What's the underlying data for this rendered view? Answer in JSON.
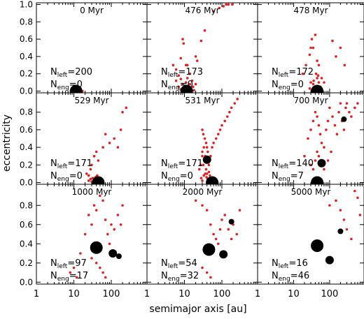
{
  "figure": {
    "ylabel": "eccentricity",
    "xlabel": "semimajor axis [au]",
    "x_tick_labels": [
      "1",
      "10",
      "100"
    ],
    "y_tick_labels_top_row": [
      "0.0",
      "0.2",
      "0.4",
      "0.6",
      "0.8",
      "1.0"
    ],
    "y_tick_labels_other_rows": [
      "0.0",
      "0.2",
      "0.4",
      "0.6",
      "0.8"
    ],
    "colors": {
      "particles": "#dd2222",
      "planets": "#000000",
      "frame": "#000000"
    }
  },
  "chart_data": [
    {
      "type": "scatter",
      "time_label": "0 Myr",
      "nleft": "200",
      "neng": "0",
      "xscale": "log",
      "xlim": [
        1,
        900
      ],
      "ylim": [
        -0.02,
        1.02
      ],
      "red_points": [
        [
          11,
          0
        ],
        [
          12,
          0
        ],
        [
          13,
          0
        ],
        [
          14,
          0
        ],
        [
          15,
          0
        ],
        [
          16,
          0
        ],
        [
          17,
          0
        ]
      ],
      "planets": [
        {
          "a": 11.5,
          "e": 0.0,
          "size": 3
        }
      ]
    },
    {
      "type": "scatter",
      "time_label": "476 Myr",
      "nleft": "173",
      "neng": "0",
      "xscale": "log",
      "xlim": [
        1,
        900
      ],
      "ylim": [
        -0.02,
        1.02
      ],
      "red_points": [
        [
          5,
          0.3
        ],
        [
          6,
          0.25
        ],
        [
          8,
          0.38
        ],
        [
          9,
          0.6
        ],
        [
          9.5,
          0.55
        ],
        [
          11,
          0.3
        ],
        [
          12,
          0.3
        ],
        [
          14,
          0.2
        ],
        [
          20,
          0.4
        ],
        [
          22,
          0.35
        ],
        [
          28,
          0.58
        ],
        [
          35,
          0.7
        ],
        [
          60,
          0.92
        ],
        [
          85,
          0.96
        ],
        [
          110,
          0.98
        ],
        [
          130,
          1.0
        ],
        [
          150,
          1.0
        ],
        [
          190,
          1.0
        ],
        [
          7,
          0.05
        ],
        [
          8,
          0.02
        ],
        [
          9,
          0.08
        ],
        [
          10,
          0.03
        ],
        [
          11,
          0.1
        ],
        [
          12,
          0.15
        ],
        [
          13,
          0.05
        ],
        [
          14,
          0.08
        ],
        [
          15,
          0.02
        ],
        [
          16,
          0.12
        ],
        [
          17,
          0.05
        ],
        [
          18,
          0.01
        ],
        [
          20,
          0.08
        ],
        [
          6,
          0.12
        ],
        [
          7,
          0.18
        ],
        [
          8,
          0.14
        ]
      ],
      "planets": [
        {
          "a": 11.5,
          "e": 0.0,
          "size": 3
        }
      ]
    },
    {
      "type": "scatter",
      "time_label": "478 Myr",
      "nleft": "172",
      "neng": "0",
      "xscale": "log",
      "xlim": [
        1,
        900
      ],
      "ylim": [
        -0.02,
        1.02
      ],
      "red_points": [
        [
          18,
          0.2
        ],
        [
          22,
          0.3
        ],
        [
          28,
          0.42
        ],
        [
          30,
          0.5
        ],
        [
          32,
          0.6
        ],
        [
          35,
          0.5
        ],
        [
          40,
          0.65
        ],
        [
          45,
          0.35
        ],
        [
          50,
          0.3
        ],
        [
          60,
          0.15
        ],
        [
          70,
          0.1
        ],
        [
          120,
          0.58
        ],
        [
          150,
          0.4
        ],
        [
          200,
          0.5
        ],
        [
          260,
          0.3
        ],
        [
          30,
          0.1
        ],
        [
          35,
          0.08
        ],
        [
          40,
          0.05
        ],
        [
          45,
          0.15
        ],
        [
          50,
          0.1
        ],
        [
          55,
          0.05
        ],
        [
          60,
          0.02
        ],
        [
          28,
          0.03
        ],
        [
          32,
          0.01
        ],
        [
          36,
          0.12
        ],
        [
          42,
          0.2
        ],
        [
          48,
          0.18
        ]
      ],
      "planets": [
        {
          "a": 45,
          "e": 0.0,
          "size": 3
        }
      ]
    },
    {
      "type": "scatter",
      "time_label": "529 Myr",
      "nleft": "171",
      "neng": "0",
      "xscale": "log",
      "xlim": [
        1,
        900
      ],
      "ylim": [
        -0.02,
        1.02
      ],
      "red_points": [
        [
          22,
          0.1
        ],
        [
          25,
          0.08
        ],
        [
          28,
          0.15
        ],
        [
          30,
          0.2
        ],
        [
          35,
          0.3
        ],
        [
          40,
          0.35
        ],
        [
          45,
          0.25
        ],
        [
          60,
          0.4
        ],
        [
          70,
          0.55
        ],
        [
          90,
          0.45
        ],
        [
          120,
          0.5
        ],
        [
          150,
          0.4
        ],
        [
          180,
          0.6
        ],
        [
          200,
          0.8
        ],
        [
          250,
          0.85
        ],
        [
          25,
          0.02
        ],
        [
          28,
          0.04
        ],
        [
          30,
          0.01
        ],
        [
          32,
          0.05
        ],
        [
          35,
          0.02
        ],
        [
          38,
          0.06
        ],
        [
          40,
          0.03
        ],
        [
          42,
          0.08
        ],
        [
          48,
          0.04
        ],
        [
          55,
          0.02
        ]
      ],
      "planets": [
        {
          "a": 45,
          "e": 0.0,
          "size": 3
        }
      ]
    },
    {
      "type": "scatter",
      "time_label": "531 Myr",
      "nleft": "171",
      "neng": "0",
      "xscale": "log",
      "xlim": [
        1,
        900
      ],
      "ylim": [
        -0.02,
        1.02
      ],
      "red_points": [
        [
          30,
          0.6
        ],
        [
          32,
          0.55
        ],
        [
          35,
          0.5
        ],
        [
          38,
          0.45
        ],
        [
          40,
          0.4
        ],
        [
          42,
          0.35
        ],
        [
          30,
          0.3
        ],
        [
          32,
          0.2
        ],
        [
          35,
          0.25
        ],
        [
          38,
          0.15
        ],
        [
          40,
          0.1
        ],
        [
          45,
          0.2
        ],
        [
          50,
          0.3
        ],
        [
          55,
          0.4
        ],
        [
          60,
          0.45
        ],
        [
          70,
          0.5
        ],
        [
          80,
          0.55
        ],
        [
          90,
          0.6
        ],
        [
          100,
          0.65
        ],
        [
          120,
          0.7
        ],
        [
          140,
          0.75
        ],
        [
          160,
          0.8
        ],
        [
          180,
          0.85
        ],
        [
          220,
          0.9
        ],
        [
          260,
          0.95
        ],
        [
          28,
          0.05
        ],
        [
          30,
          0.02
        ],
        [
          33,
          0.08
        ],
        [
          36,
          0.1
        ],
        [
          39,
          0.06
        ],
        [
          42,
          0.04
        ],
        [
          45,
          0.12
        ],
        [
          48,
          0.08
        ],
        [
          52,
          0.05
        ],
        [
          25,
          0.15
        ],
        [
          27,
          0.2
        ],
        [
          30,
          0.35
        ],
        [
          33,
          0.4
        ],
        [
          36,
          0.3
        ]
      ],
      "planets": [
        {
          "a": 55,
          "e": 0.0,
          "size": 3
        },
        {
          "a": 40,
          "e": 0.26,
          "size": 2
        }
      ]
    },
    {
      "type": "scatter",
      "time_label": "700 Myr",
      "nleft": "140",
      "neng": "7",
      "xscale": "log",
      "xlim": [
        1,
        900
      ],
      "ylim": [
        -0.02,
        1.02
      ],
      "red_points": [
        [
          20,
          0.3
        ],
        [
          25,
          0.5
        ],
        [
          30,
          0.6
        ],
        [
          35,
          0.7
        ],
        [
          40,
          0.8
        ],
        [
          45,
          0.75
        ],
        [
          50,
          0.65
        ],
        [
          55,
          0.55
        ],
        [
          60,
          0.45
        ],
        [
          70,
          0.4
        ],
        [
          80,
          0.6
        ],
        [
          90,
          0.7
        ],
        [
          100,
          0.85
        ],
        [
          120,
          0.75
        ],
        [
          140,
          0.65
        ],
        [
          160,
          0.55
        ],
        [
          180,
          0.8
        ],
        [
          200,
          0.9
        ],
        [
          220,
          0.7
        ],
        [
          250,
          0.6
        ],
        [
          280,
          0.85
        ],
        [
          300,
          0.9
        ],
        [
          350,
          0.8
        ],
        [
          400,
          0.75
        ],
        [
          500,
          0.85
        ],
        [
          600,
          0.9
        ],
        [
          30,
          0.2
        ],
        [
          35,
          0.15
        ],
        [
          40,
          0.25
        ],
        [
          45,
          0.35
        ],
        [
          50,
          0.3
        ],
        [
          60,
          0.2
        ],
        [
          70,
          0.15
        ],
        [
          90,
          0.25
        ],
        [
          110,
          0.35
        ]
      ],
      "planets": [
        {
          "a": 45,
          "e": 0.0,
          "size": 3
        },
        {
          "a": 60,
          "e": 0.22,
          "size": 2
        },
        {
          "a": 250,
          "e": 0.72,
          "size": 1
        }
      ]
    },
    {
      "type": "scatter",
      "time_label": "1000 Myr",
      "nleft": "97",
      "neng": "17",
      "xscale": "log",
      "xlim": [
        1,
        900
      ],
      "ylim": [
        -0.02,
        1.02
      ],
      "red_points": [
        [
          8,
          0.1
        ],
        [
          10,
          0.15
        ],
        [
          12,
          0.05
        ],
        [
          15,
          0.3
        ],
        [
          20,
          0.5
        ],
        [
          25,
          0.7
        ],
        [
          30,
          0.6
        ],
        [
          35,
          0.8
        ],
        [
          40,
          0.75
        ],
        [
          50,
          0.9
        ],
        [
          60,
          0.85
        ],
        [
          70,
          0.65
        ],
        [
          80,
          0.5
        ],
        [
          90,
          0.4
        ],
        [
          100,
          0.6
        ],
        [
          120,
          0.55
        ],
        [
          150,
          0.7
        ],
        [
          180,
          0.6
        ],
        [
          200,
          0.8
        ],
        [
          30,
          0.25
        ],
        [
          40,
          0.2
        ],
        [
          50,
          0.15
        ],
        [
          60,
          0.1
        ],
        [
          70,
          0.05
        ]
      ],
      "planets": [
        {
          "a": 40,
          "e": 0.36,
          "size": 3
        },
        {
          "a": 110,
          "e": 0.3,
          "size": 2
        },
        {
          "a": 160,
          "e": 0.27,
          "size": 1
        }
      ]
    },
    {
      "type": "scatter",
      "time_label": "2000 Myr",
      "nleft": "54",
      "neng": "32",
      "xscale": "log",
      "xlim": [
        1,
        900
      ],
      "ylim": [
        -0.02,
        1.02
      ],
      "red_points": [
        [
          20,
          0.85
        ],
        [
          30,
          0.8
        ],
        [
          40,
          0.75
        ],
        [
          50,
          0.6
        ],
        [
          60,
          0.5
        ],
        [
          70,
          0.45
        ],
        [
          80,
          0.4
        ],
        [
          90,
          0.55
        ],
        [
          100,
          0.65
        ],
        [
          120,
          0.7
        ],
        [
          150,
          0.55
        ],
        [
          180,
          0.45
        ],
        [
          200,
          0.6
        ],
        [
          250,
          0.5
        ],
        [
          300,
          0.75
        ],
        [
          30,
          0.15
        ],
        [
          40,
          0.1
        ],
        [
          50,
          0.05
        ]
      ],
      "planets": [
        {
          "a": 45,
          "e": 0.34,
          "size": 3
        },
        {
          "a": 110,
          "e": 0.29,
          "size": 2
        },
        {
          "a": 180,
          "e": 0.63,
          "size": 1
        }
      ]
    },
    {
      "type": "scatter",
      "time_label": "5000 Myr",
      "nleft": "16",
      "neng": "46",
      "xscale": "log",
      "xlim": [
        1,
        900
      ],
      "ylim": [
        -0.02,
        1.02
      ],
      "red_points": [
        [
          100,
          0.8
        ],
        [
          150,
          0.85
        ],
        [
          200,
          0.75
        ],
        [
          250,
          0.65
        ],
        [
          300,
          0.55
        ],
        [
          400,
          0.45
        ],
        [
          500,
          0.95
        ],
        [
          600,
          0.88
        ],
        [
          700,
          0.7
        ]
      ],
      "planets": [
        {
          "a": 45,
          "e": 0.38,
          "size": 3
        },
        {
          "a": 100,
          "e": 0.23,
          "size": 2
        },
        {
          "a": 200,
          "e": 0.53,
          "size": 1
        }
      ]
    }
  ]
}
